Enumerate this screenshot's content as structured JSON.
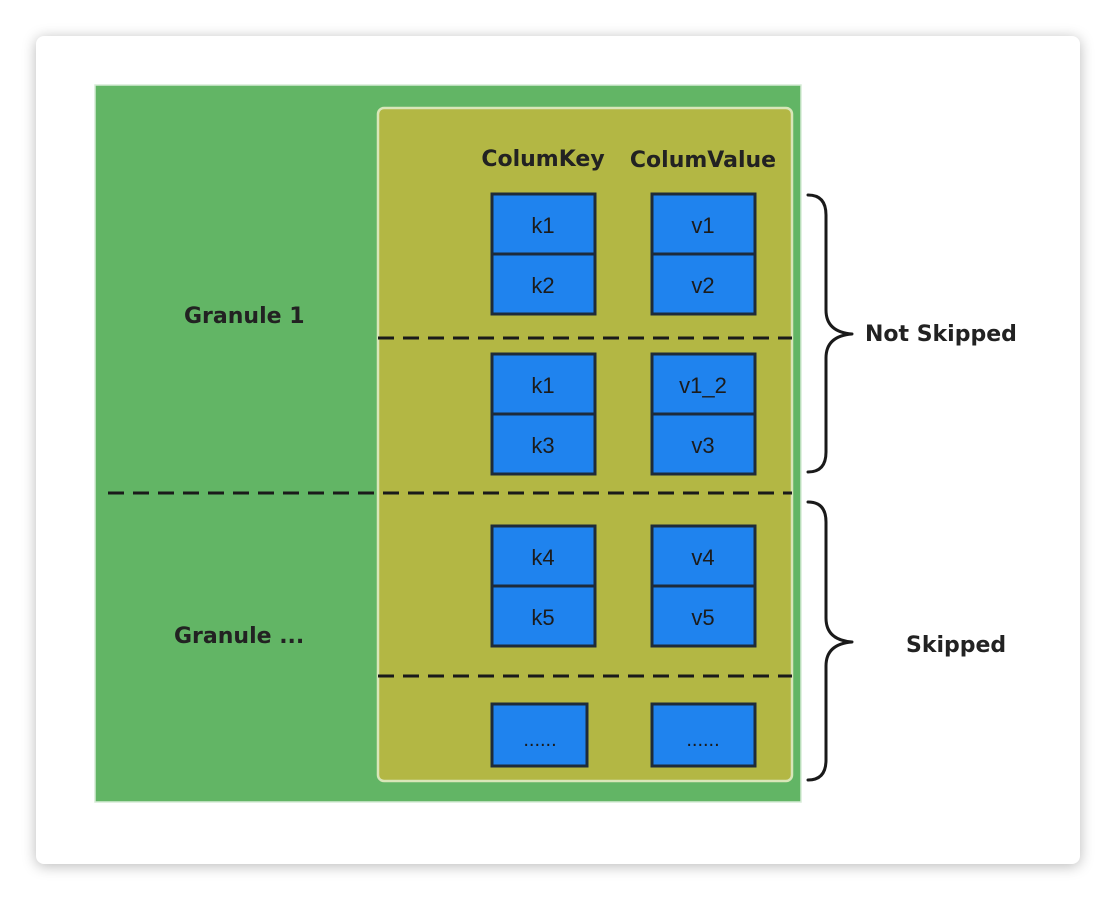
{
  "colors": {
    "granule_bg": "#62b565",
    "block_bg": "#b3b744",
    "cell_fill": "#1f83ee",
    "cell_stroke": "#1d2b3a",
    "text": "#222222"
  },
  "diagram": {
    "granule_1_label": "Granule 1",
    "granule_n_label": "Granule ...",
    "column_key_header": "ColumKey",
    "column_value_header": "ColumValue",
    "not_skipped_label": "Not Skipped",
    "skipped_label": "Skipped",
    "groups": [
      {
        "keys": [
          "k1",
          "k2"
        ],
        "values": [
          "v1",
          "v2"
        ]
      },
      {
        "keys": [
          "k1",
          "k3"
        ],
        "values": [
          "v1_2",
          "v3"
        ]
      },
      {
        "keys": [
          "k4",
          "k5"
        ],
        "values": [
          "v4",
          "v5"
        ]
      },
      {
        "keys": [
          "......"
        ],
        "values": [
          "......"
        ]
      }
    ]
  }
}
